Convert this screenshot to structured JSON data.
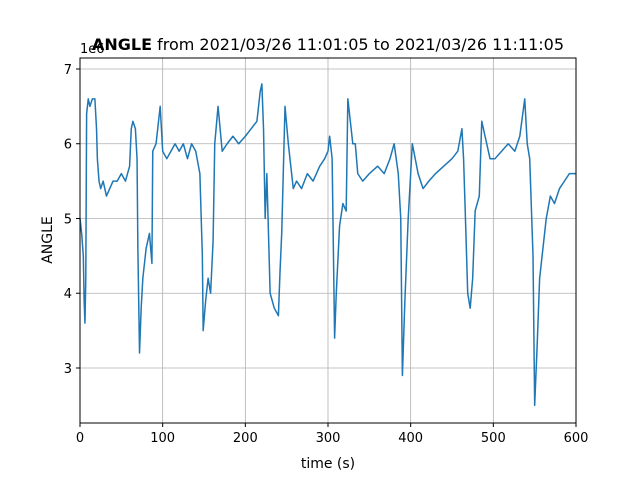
{
  "chart_data": {
    "type": "line",
    "title_bold": "ANGLE",
    "title": "from 2021/03/26 11:01:05 to 2021/03/26 11:11:05",
    "x_label": "time (s)",
    "y_label": "ANGLE",
    "y_offset": "1e6",
    "xlim": [
      0,
      600
    ],
    "ylim": [
      2.264,
      7.147
    ],
    "xticks": [
      0,
      100,
      200,
      300,
      400,
      500,
      600
    ],
    "yticks": [
      3,
      4,
      5,
      6,
      7
    ],
    "grid": true,
    "x": [
      0,
      2,
      4,
      5,
      6,
      7,
      8,
      10,
      12,
      15,
      18,
      20,
      21,
      23,
      25,
      28,
      32,
      36,
      40,
      45,
      50,
      55,
      60,
      62,
      64,
      67,
      69,
      70,
      72,
      74,
      76,
      80,
      84,
      87,
      88,
      92,
      97,
      100,
      105,
      110,
      115,
      120,
      125,
      130,
      135,
      140,
      145,
      148,
      149,
      152,
      155,
      158,
      161,
      163,
      167,
      172,
      178,
      185,
      192,
      200,
      207,
      214,
      218,
      220,
      222,
      224,
      226,
      230,
      235,
      240,
      242,
      244,
      248,
      252,
      254,
      258,
      262,
      268,
      275,
      282,
      290,
      296,
      300,
      302,
      305,
      308,
      310,
      314,
      318,
      322,
      324,
      330,
      333,
      336,
      342,
      350,
      360,
      368,
      375,
      380,
      385,
      388,
      390,
      393,
      397,
      402,
      409,
      415,
      422,
      430,
      440,
      450,
      457,
      462,
      464,
      466,
      469,
      472,
      475,
      478,
      483,
      486,
      490,
      496,
      502,
      510,
      518,
      526,
      532,
      538,
      541,
      544,
      548,
      550,
      553,
      556,
      559,
      564,
      569,
      574,
      580,
      586,
      592,
      600
    ],
    "series": [
      {
        "name": "ANGLE",
        "color": "#1f77b4",
        "values": [
          5.0,
          4.8,
          4.5,
          3.9,
          3.6,
          4.2,
          6.4,
          6.6,
          6.5,
          6.6,
          6.6,
          6.2,
          5.8,
          5.5,
          5.4,
          5.5,
          5.3,
          5.4,
          5.5,
          5.5,
          5.6,
          5.5,
          5.7,
          6.2,
          6.3,
          6.2,
          5.8,
          4.6,
          3.2,
          3.8,
          4.2,
          4.6,
          4.8,
          4.4,
          5.9,
          6.0,
          6.5,
          5.9,
          5.8,
          5.9,
          6.0,
          5.9,
          6.0,
          5.8,
          6.0,
          5.9,
          5.6,
          4.5,
          3.5,
          3.9,
          4.2,
          4.0,
          4.7,
          6.0,
          6.5,
          5.9,
          6.0,
          6.1,
          6.0,
          6.1,
          6.2,
          6.3,
          6.7,
          6.8,
          6.2,
          5.0,
          5.6,
          4.0,
          3.8,
          3.7,
          4.3,
          4.8,
          6.5,
          6.0,
          5.8,
          5.4,
          5.5,
          5.4,
          5.6,
          5.5,
          5.7,
          5.8,
          5.9,
          6.1,
          5.8,
          3.4,
          4.0,
          4.9,
          5.2,
          5.1,
          6.6,
          6.0,
          6.0,
          5.6,
          5.5,
          5.6,
          5.7,
          5.6,
          5.8,
          6.0,
          5.6,
          5.0,
          2.9,
          3.9,
          5.0,
          6.0,
          5.6,
          5.4,
          5.5,
          5.6,
          5.7,
          5.8,
          5.9,
          6.2,
          5.8,
          5.1,
          4.0,
          3.8,
          4.2,
          5.1,
          5.3,
          6.3,
          6.1,
          5.8,
          5.8,
          5.9,
          6.0,
          5.9,
          6.1,
          6.6,
          6.0,
          5.8,
          4.5,
          2.5,
          3.3,
          4.2,
          4.5,
          5.0,
          5.3,
          5.2,
          5.4,
          5.5,
          5.6,
          5.6
        ]
      }
    ]
  }
}
